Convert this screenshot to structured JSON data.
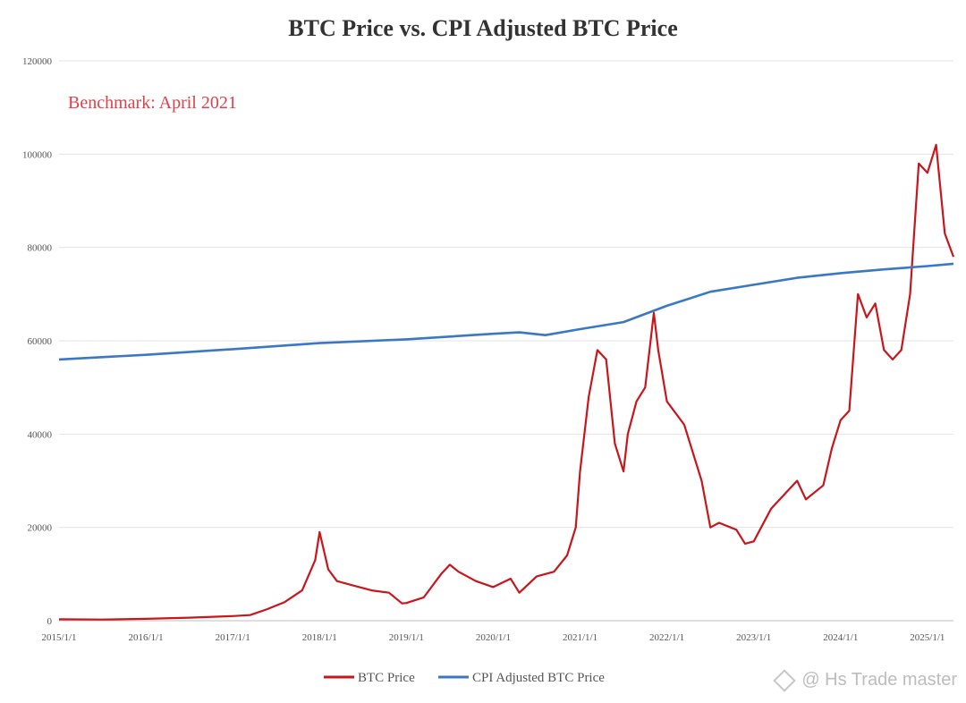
{
  "chart_data": {
    "type": "line",
    "title": "BTC Price vs. CPI Adjusted BTC Price",
    "annotation": "Benchmark: April 2021",
    "ylim": [
      0,
      120000
    ],
    "yticks": [
      0,
      20000,
      40000,
      60000,
      80000,
      100000,
      120000
    ],
    "xlim": [
      2015.0,
      2025.3
    ],
    "xticks": [
      {
        "v": 2015,
        "label": "2015/1/1"
      },
      {
        "v": 2016,
        "label": "2016/1/1"
      },
      {
        "v": 2017,
        "label": "2017/1/1"
      },
      {
        "v": 2018,
        "label": "2018/1/1"
      },
      {
        "v": 2019,
        "label": "2019/1/1"
      },
      {
        "v": 2020,
        "label": "2020/1/1"
      },
      {
        "v": 2021,
        "label": "2021/1/1"
      },
      {
        "v": 2022,
        "label": "2022/1/1"
      },
      {
        "v": 2023,
        "label": "2023/1/1"
      },
      {
        "v": 2024,
        "label": "2024/1/1"
      },
      {
        "v": 2025,
        "label": "2025/1/1"
      }
    ],
    "grid": true,
    "legend": "bottom",
    "series": [
      {
        "name": "BTC Price",
        "color": "#c8161d",
        "x": [
          2015.0,
          2015.5,
          2016.0,
          2016.5,
          2017.0,
          2017.2,
          2017.4,
          2017.6,
          2017.8,
          2017.95,
          2018.0,
          2018.1,
          2018.2,
          2018.4,
          2018.6,
          2018.8,
          2018.95,
          2019.0,
          2019.2,
          2019.4,
          2019.5,
          2019.6,
          2019.8,
          2020.0,
          2020.2,
          2020.3,
          2020.5,
          2020.7,
          2020.85,
          2020.95,
          2021.0,
          2021.1,
          2021.2,
          2021.3,
          2021.4,
          2021.5,
          2021.55,
          2021.65,
          2021.75,
          2021.85,
          2021.9,
          2022.0,
          2022.2,
          2022.4,
          2022.5,
          2022.6,
          2022.8,
          2022.9,
          2023.0,
          2023.2,
          2023.4,
          2023.5,
          2023.6,
          2023.8,
          2023.9,
          2024.0,
          2024.1,
          2024.2,
          2024.3,
          2024.4,
          2024.5,
          2024.6,
          2024.7,
          2024.8,
          2024.9,
          2025.0,
          2025.1,
          2025.2,
          2025.3
        ],
        "y": [
          300,
          250,
          400,
          650,
          1000,
          1200,
          2500,
          4000,
          6500,
          13000,
          19000,
          11000,
          8500,
          7500,
          6500,
          6000,
          3700,
          3800,
          5000,
          10000,
          12000,
          10500,
          8500,
          7200,
          9000,
          6000,
          9500,
          10500,
          14000,
          20000,
          32000,
          48000,
          58000,
          56000,
          38000,
          32000,
          40000,
          47000,
          50000,
          66000,
          58000,
          47000,
          42000,
          30000,
          20000,
          21000,
          19500,
          16500,
          17000,
          24000,
          28000,
          30000,
          26000,
          29000,
          37000,
          43000,
          45000,
          70000,
          65000,
          68000,
          58000,
          56000,
          58000,
          70000,
          98000,
          96000,
          102000,
          83000,
          78000
        ]
      },
      {
        "name": "CPI Adjusted BTC Price",
        "color": "#3a78c6",
        "x": [
          2015.0,
          2016.0,
          2017.0,
          2018.0,
          2019.0,
          2020.0,
          2020.3,
          2020.6,
          2021.0,
          2021.5,
          2022.0,
          2022.5,
          2023.0,
          2023.5,
          2024.0,
          2024.5,
          2025.0,
          2025.3
        ],
        "y": [
          56000,
          57000,
          58200,
          59500,
          60300,
          61500,
          61800,
          61200,
          62500,
          64000,
          67500,
          70500,
          72000,
          73500,
          74500,
          75300,
          76000,
          76500
        ]
      }
    ]
  },
  "watermark": "@ Hs Trade master"
}
